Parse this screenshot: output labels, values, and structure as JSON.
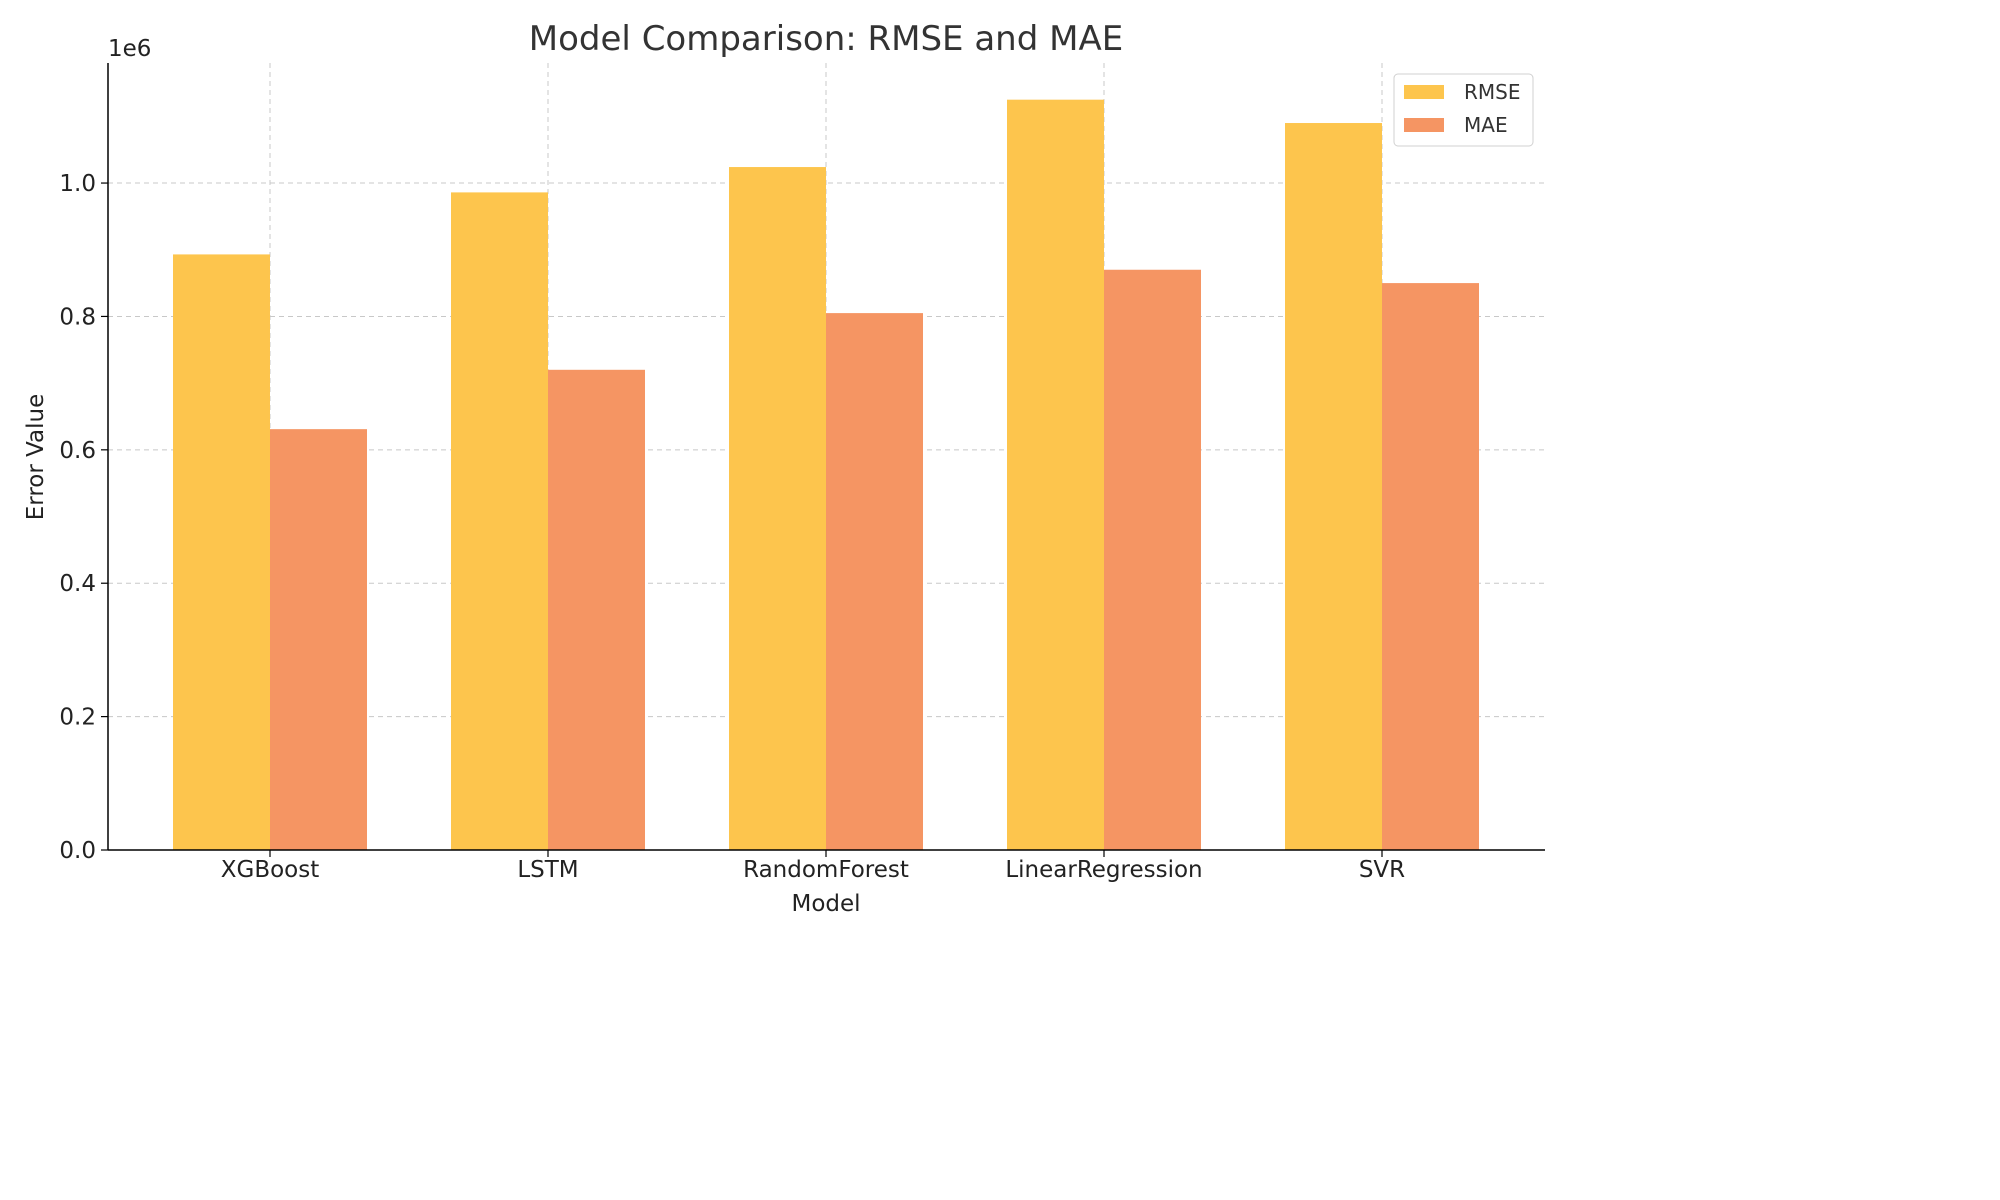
{
  "chart_data": {
    "type": "bar",
    "title": "Model Comparison: RMSE and MAE",
    "xlabel": "Model",
    "ylabel": "Error Value",
    "y_offset_label": "1e6",
    "categories": [
      "XGBoost",
      "LSTM",
      "RandomForest",
      "LinearRegression",
      "SVR"
    ],
    "series": [
      {
        "name": "RMSE",
        "color": "#FDC54D",
        "values": [
          893000,
          986000,
          1024000,
          1125000,
          1090000
        ]
      },
      {
        "name": "MAE",
        "color": "#F59563",
        "values": [
          631000,
          720000,
          805000,
          870000,
          850000
        ]
      }
    ],
    "ylim": [
      0,
      1180000
    ],
    "yticks": [
      0,
      200000,
      400000,
      600000,
      800000,
      1000000
    ],
    "ytick_labels": [
      "0.0",
      "0.2",
      "0.4",
      "0.6",
      "0.8",
      "1.0"
    ],
    "grid": true,
    "legend_position": "top-right"
  }
}
